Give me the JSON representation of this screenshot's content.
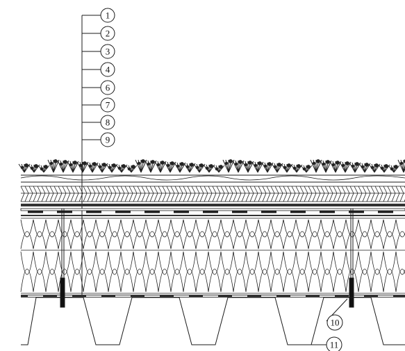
{
  "drawing": {
    "kind": "green roof section detail",
    "callouts": [
      {
        "id": "1",
        "label": "1"
      },
      {
        "id": "2",
        "label": "2"
      },
      {
        "id": "3",
        "label": "3"
      },
      {
        "id": "4",
        "label": "4"
      },
      {
        "id": "6",
        "label": "6"
      },
      {
        "id": "7",
        "label": "7"
      },
      {
        "id": "8",
        "label": "8"
      },
      {
        "id": "9",
        "label": "9"
      },
      {
        "id": "10",
        "label": "10"
      },
      {
        "id": "11",
        "label": "11"
      }
    ],
    "colors": {
      "ink": "#1a1a1a",
      "plant": "#222222",
      "membrane": "#333333",
      "paper": "#ffffff"
    }
  }
}
